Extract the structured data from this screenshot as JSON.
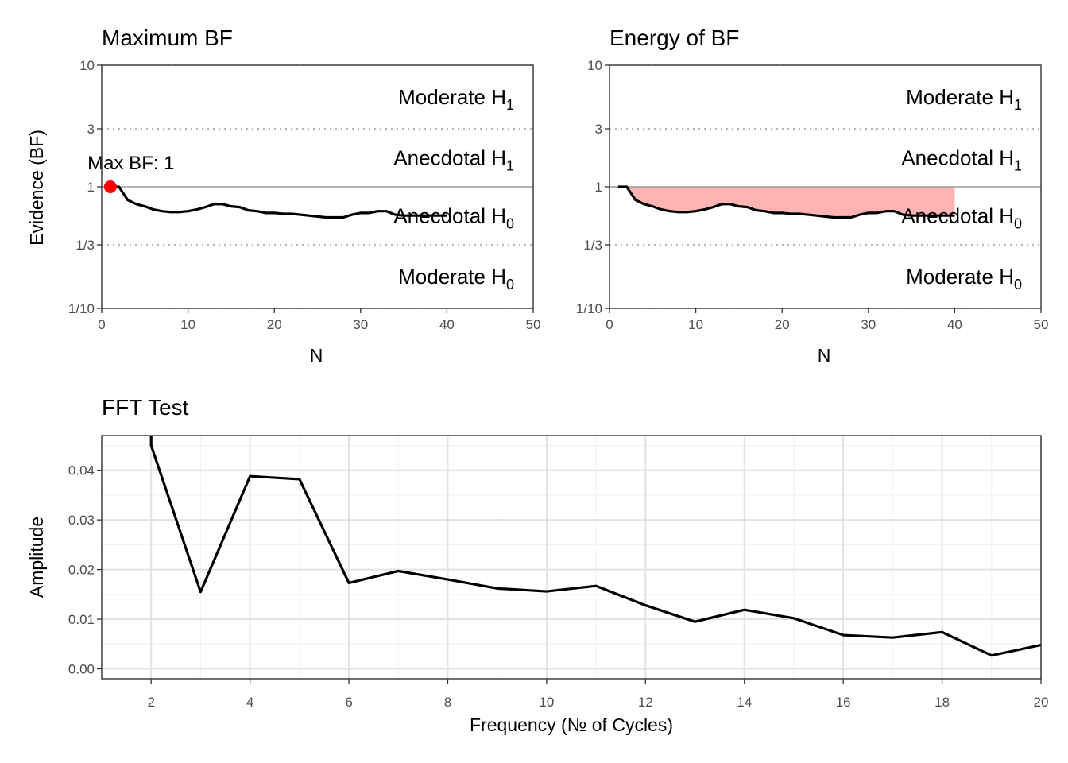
{
  "chart_data": [
    {
      "type": "line",
      "title": "Maximum BF",
      "xlabel": "N",
      "ylabel": "Evidence (BF)",
      "xlim": [
        0,
        50
      ],
      "x_ticks": [
        "0",
        "10",
        "20",
        "30",
        "40",
        "50"
      ],
      "ylim": [
        0.1,
        10
      ],
      "y_scale": "log",
      "y_ticks": [
        "10",
        "3",
        "1",
        "1/3",
        "1/10"
      ],
      "grid": "dotted at 10, 3, 1/3, 1/10; solid grey at 1",
      "regions": [
        {
          "name": "Moderate",
          "sub": "1"
        },
        {
          "name": "Anecdotal",
          "sub": "1"
        },
        {
          "name": "Anecdotal",
          "sub": "0"
        },
        {
          "name": "Moderate",
          "sub": "0"
        }
      ],
      "annotation": {
        "text": "Max BF: 1",
        "x": 1,
        "y": 1,
        "color": "#FF0000"
      },
      "x": [
        1,
        2,
        3,
        4,
        5,
        6,
        7,
        8,
        9,
        10,
        11,
        12,
        13,
        14,
        15,
        16,
        17,
        18,
        19,
        20,
        21,
        22,
        23,
        24,
        25,
        26,
        27,
        28,
        29,
        30,
        31,
        32,
        33,
        34,
        35,
        36,
        37,
        38,
        39,
        40
      ],
      "y": [
        1.0,
        1.0,
        0.78,
        0.72,
        0.69,
        0.65,
        0.63,
        0.62,
        0.62,
        0.63,
        0.65,
        0.68,
        0.72,
        0.72,
        0.69,
        0.68,
        0.64,
        0.63,
        0.61,
        0.61,
        0.6,
        0.6,
        0.59,
        0.58,
        0.57,
        0.56,
        0.56,
        0.56,
        0.59,
        0.61,
        0.61,
        0.63,
        0.63,
        0.59,
        0.58,
        0.58,
        0.58,
        0.58,
        0.58,
        0.58
      ]
    },
    {
      "type": "area",
      "title": "Energy of BF",
      "xlabel": "N",
      "ylabel": "",
      "xlim": [
        0,
        50
      ],
      "x_ticks": [
        "0",
        "10",
        "20",
        "30",
        "40",
        "50"
      ],
      "ylim": [
        0.1,
        10
      ],
      "y_scale": "log",
      "y_ticks": [
        "10",
        "3",
        "1",
        "1/3",
        "1/10"
      ],
      "grid": "dotted at 10, 3, 1/3, 1/10; solid grey at 1",
      "fill_color": "#FFB3B3",
      "regions": [
        {
          "name": "Moderate",
          "sub": "1"
        },
        {
          "name": "Anecdotal",
          "sub": "1"
        },
        {
          "name": "Anecdotal",
          "sub": "0"
        },
        {
          "name": "Moderate",
          "sub": "0"
        }
      ],
      "x": [
        1,
        2,
        3,
        4,
        5,
        6,
        7,
        8,
        9,
        10,
        11,
        12,
        13,
        14,
        15,
        16,
        17,
        18,
        19,
        20,
        21,
        22,
        23,
        24,
        25,
        26,
        27,
        28,
        29,
        30,
        31,
        32,
        33,
        34,
        35,
        36,
        37,
        38,
        39,
        40
      ],
      "y": [
        1.0,
        1.0,
        0.78,
        0.72,
        0.69,
        0.65,
        0.63,
        0.62,
        0.62,
        0.63,
        0.65,
        0.68,
        0.72,
        0.72,
        0.69,
        0.68,
        0.64,
        0.63,
        0.61,
        0.61,
        0.6,
        0.6,
        0.59,
        0.58,
        0.57,
        0.56,
        0.56,
        0.56,
        0.59,
        0.61,
        0.61,
        0.63,
        0.63,
        0.59,
        0.58,
        0.58,
        0.58,
        0.58,
        0.58,
        0.58
      ]
    },
    {
      "type": "line",
      "title": "FFT Test",
      "xlabel": "Frequency (№ of Cycles)",
      "ylabel": "Amplitude",
      "xlim": [
        1,
        20
      ],
      "x_ticks": [
        "2",
        "4",
        "6",
        "8",
        "10",
        "12",
        "14",
        "16",
        "18",
        "20"
      ],
      "ylim": [
        -0.002,
        0.047
      ],
      "y_ticks": [
        "0.00",
        "0.01",
        "0.02",
        "0.03",
        "0.04"
      ],
      "grid": true,
      "x": [
        2,
        3,
        4,
        5,
        6,
        7,
        8,
        9,
        10,
        11,
        12,
        13,
        14,
        15,
        16,
        17,
        18,
        19,
        20
      ],
      "y": [
        0.045,
        0.0155,
        0.0388,
        0.0382,
        0.0173,
        0.0197,
        0.018,
        0.0162,
        0.0156,
        0.0167,
        0.0128,
        0.0095,
        0.0119,
        0.0102,
        0.0068,
        0.0063,
        0.0074,
        0.0027,
        0.0048
      ]
    }
  ]
}
